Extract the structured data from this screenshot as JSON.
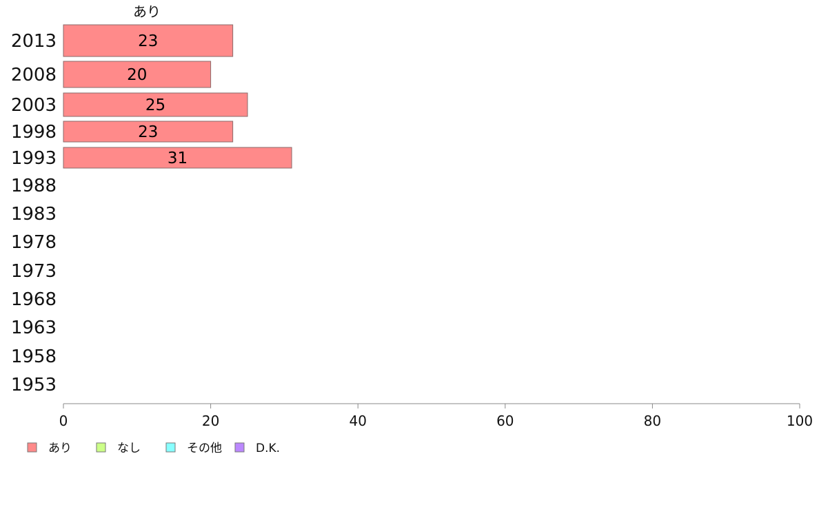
{
  "chart_data": {
    "type": "bar",
    "orientation": "horizontal",
    "categories": [
      "2013",
      "2008",
      "2003",
      "1998",
      "1993",
      "1988",
      "1983",
      "1978",
      "1973",
      "1968",
      "1963",
      "1958",
      "1953"
    ],
    "series": [
      {
        "name": "あり",
        "color": "#ff8a8a",
        "values": [
          23,
          20,
          25,
          23,
          31,
          null,
          null,
          null,
          null,
          null,
          null,
          null,
          null
        ]
      }
    ],
    "series_heading": "あり",
    "xlim": [
      0,
      100
    ],
    "xticks": [
      0,
      20,
      40,
      60,
      80,
      100
    ],
    "bar_values_shown": [
      "23",
      "20",
      "25",
      "23",
      "31"
    ],
    "legend": {
      "placement": "bottom-left",
      "items": [
        {
          "label": "あり",
          "color": "#ff8a8a"
        },
        {
          "label": "なし",
          "color": "#ccff88"
        },
        {
          "label": "その他",
          "color": "#88ffff"
        },
        {
          "label": "D.K.",
          "color": "#bb88ff"
        }
      ]
    },
    "grid": false
  }
}
